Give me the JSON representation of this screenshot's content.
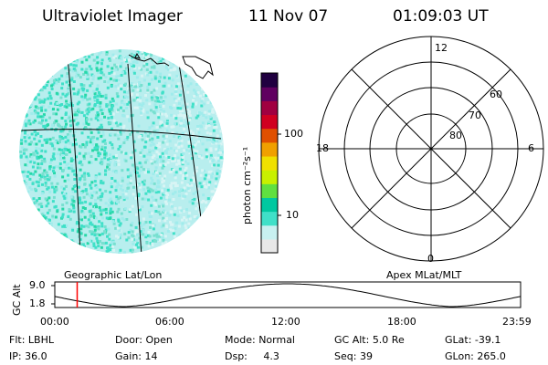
{
  "header": {
    "title": "Ultraviolet Imager",
    "date": "11 Nov 07",
    "time": "01:09:03 UT"
  },
  "colorbar": {
    "label_html": "photon cm⁻²s⁻¹",
    "ticks": [
      "100",
      "10"
    ],
    "scale": "log",
    "colors": [
      "#e8e8e8",
      "#c8f0f0",
      "#40e0c8",
      "#00c8a0",
      "#60e040",
      "#c8f000",
      "#f0e000",
      "#f0a000",
      "#e05000",
      "#d00020",
      "#a00040",
      "#600060",
      "#200040"
    ]
  },
  "globe_map": {
    "label": "Geographic Lat/Lon",
    "data_colors": [
      "#40e0c8",
      "#28d8a8",
      "#a0ecec",
      "#d8f4f4",
      "#78e0d0"
    ]
  },
  "polar_plot": {
    "label": "Apex MLat/MLT",
    "mlt_labels": {
      "top": "12",
      "right": "6",
      "bottom": "0",
      "left": "18"
    },
    "mlat_labels": [
      "60",
      "70",
      "80"
    ]
  },
  "altitude_plot": {
    "ylabel": "GC Alt",
    "yticks": [
      "9.0",
      "1.8"
    ],
    "xticks": [
      "00:00",
      "06:00",
      "12:00",
      "18:00",
      "23:59"
    ],
    "marker_time": "01:09:03",
    "marker_color": "#ff0000"
  },
  "info": {
    "row1": [
      {
        "label": "Flt:",
        "value": "LBHL"
      },
      {
        "label": "Door:",
        "value": "Open"
      },
      {
        "label": "Mode:",
        "value": "Normal"
      },
      {
        "label": "GC Alt:",
        "value": "5.0 Re"
      },
      {
        "label": "GLat:",
        "value": "-39.1"
      }
    ],
    "row2": [
      {
        "label": "IP:",
        "value": "36.0"
      },
      {
        "label": "Gain:",
        "value": "14"
      },
      {
        "label": "Dsp:",
        "value": "4.3"
      },
      {
        "label": "Seq:",
        "value": "39"
      },
      {
        "label": "GLon:",
        "value": "265.0"
      }
    ]
  }
}
